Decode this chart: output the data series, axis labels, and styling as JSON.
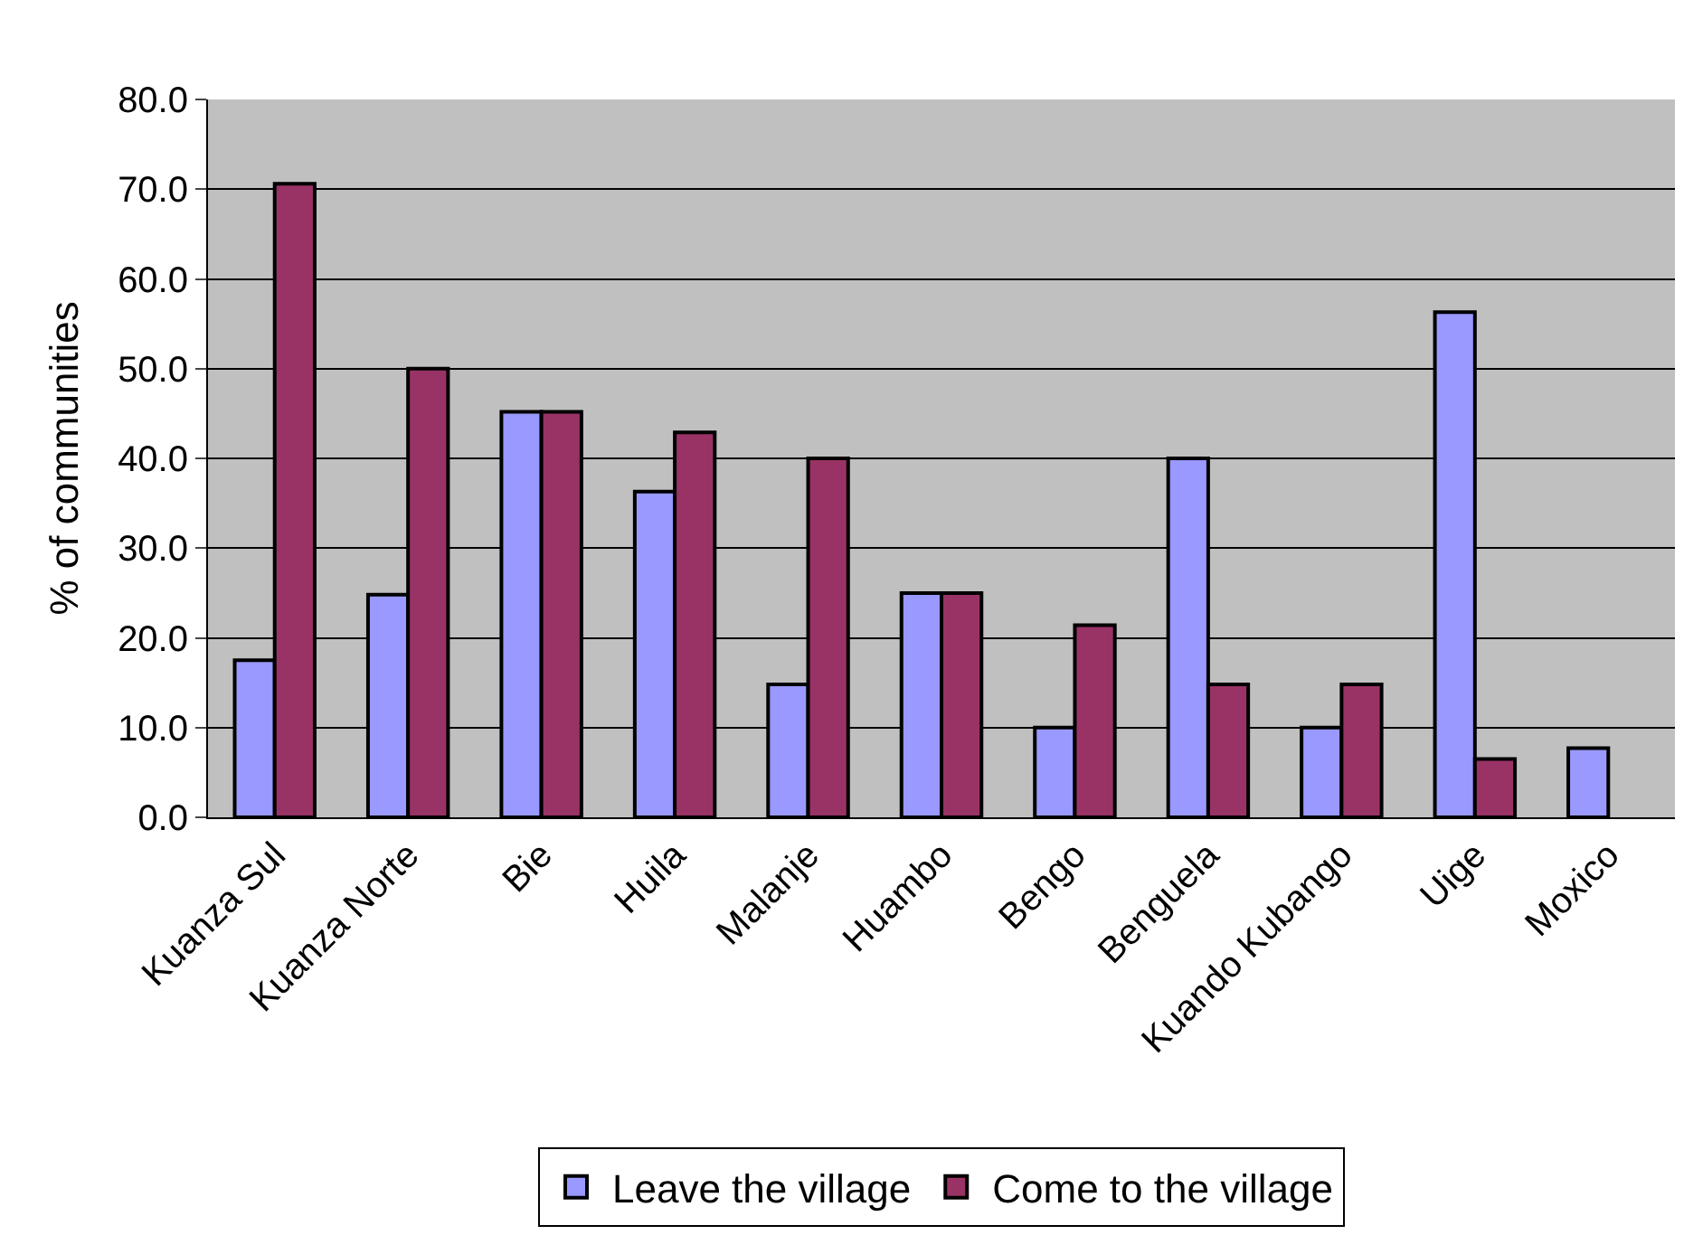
{
  "chart_data": {
    "type": "bar",
    "ylabel": "% of communities",
    "categories": [
      "Kuanza Sul",
      "Kuanza Norte",
      "Bie",
      "Huila",
      "Malanje",
      "Huambo",
      "Bengo",
      "Benguela",
      "Kuando Kubango",
      "Uige",
      "Moxico"
    ],
    "series": [
      {
        "name": "Leave the village",
        "color": "#9999ff",
        "values": [
          17.5,
          24.8,
          45.2,
          36.3,
          14.8,
          25.0,
          10.0,
          40.0,
          10.0,
          56.3,
          7.7
        ]
      },
      {
        "name": "Come to the village",
        "color": "#993366",
        "values": [
          70.6,
          50.0,
          45.2,
          42.9,
          40.0,
          25.0,
          21.4,
          14.8,
          14.8,
          6.5,
          null
        ]
      }
    ],
    "ylim": [
      0,
      80
    ],
    "yticks": [
      {
        "value": 0,
        "label": "0.0"
      },
      {
        "value": 10,
        "label": "10.0"
      },
      {
        "value": 20,
        "label": "20.0"
      },
      {
        "value": 30,
        "label": "30.0"
      },
      {
        "value": 40,
        "label": "40.0"
      },
      {
        "value": 50,
        "label": "50.0"
      },
      {
        "value": 60,
        "label": "60.0"
      },
      {
        "value": 70,
        "label": "70.0"
      },
      {
        "value": 80,
        "label": "80.0"
      }
    ],
    "grid": "y",
    "legend": "bottom"
  }
}
